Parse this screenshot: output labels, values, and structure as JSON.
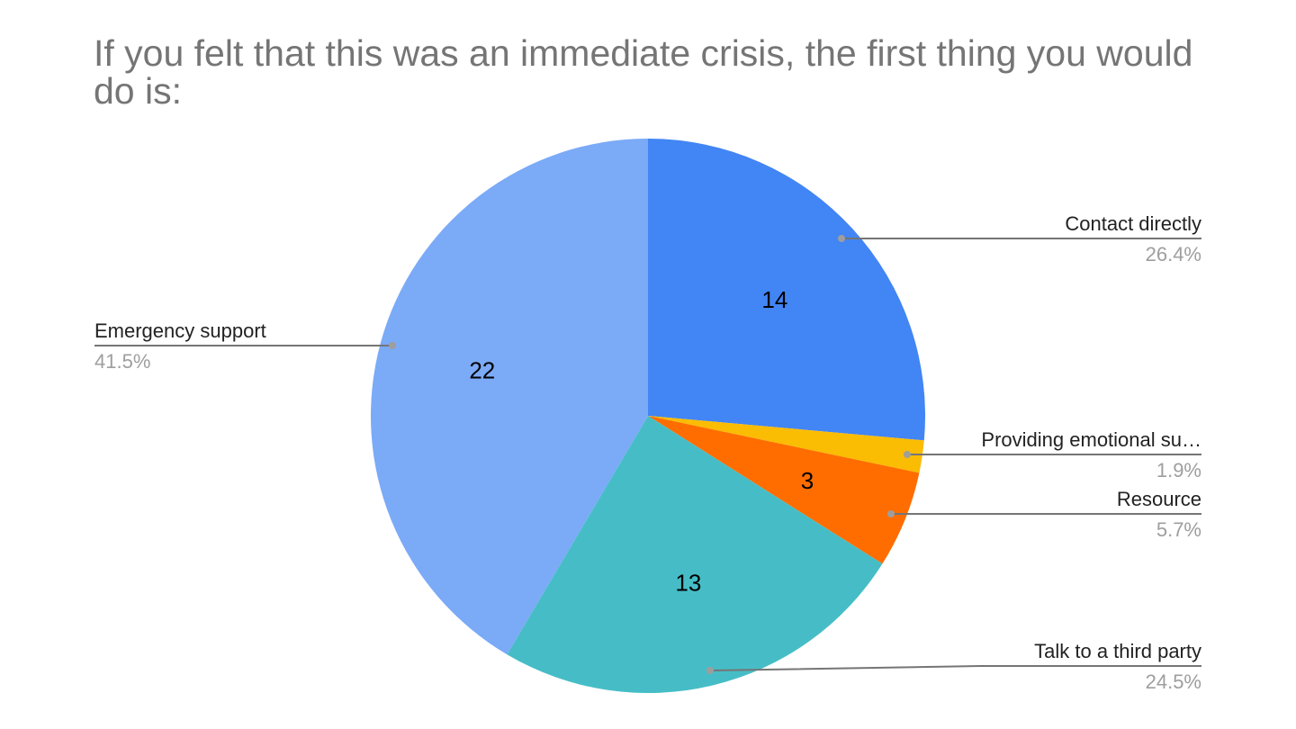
{
  "chart_data": {
    "type": "pie",
    "title": "If you felt that this was an immediate crisis, the first thing you would do is:",
    "slices": [
      {
        "name": "Contact directly",
        "value": 14,
        "percent": "26.4%",
        "value_label": "14",
        "color": "#4285f4"
      },
      {
        "name": "Providing emotional su…",
        "value": 1,
        "percent": "1.9%",
        "value_label": "",
        "color": "#fbbc04"
      },
      {
        "name": "Resource",
        "value": 3,
        "percent": "5.7%",
        "value_label": "3",
        "color": "#ff6d01"
      },
      {
        "name": "Talk to a third party",
        "value": 13,
        "percent": "24.5%",
        "value_label": "13",
        "color": "#46bdc6"
      },
      {
        "name": "Emergency support",
        "value": 22,
        "percent": "41.5%",
        "value_label": "22",
        "color": "#7baaf7"
      }
    ]
  }
}
